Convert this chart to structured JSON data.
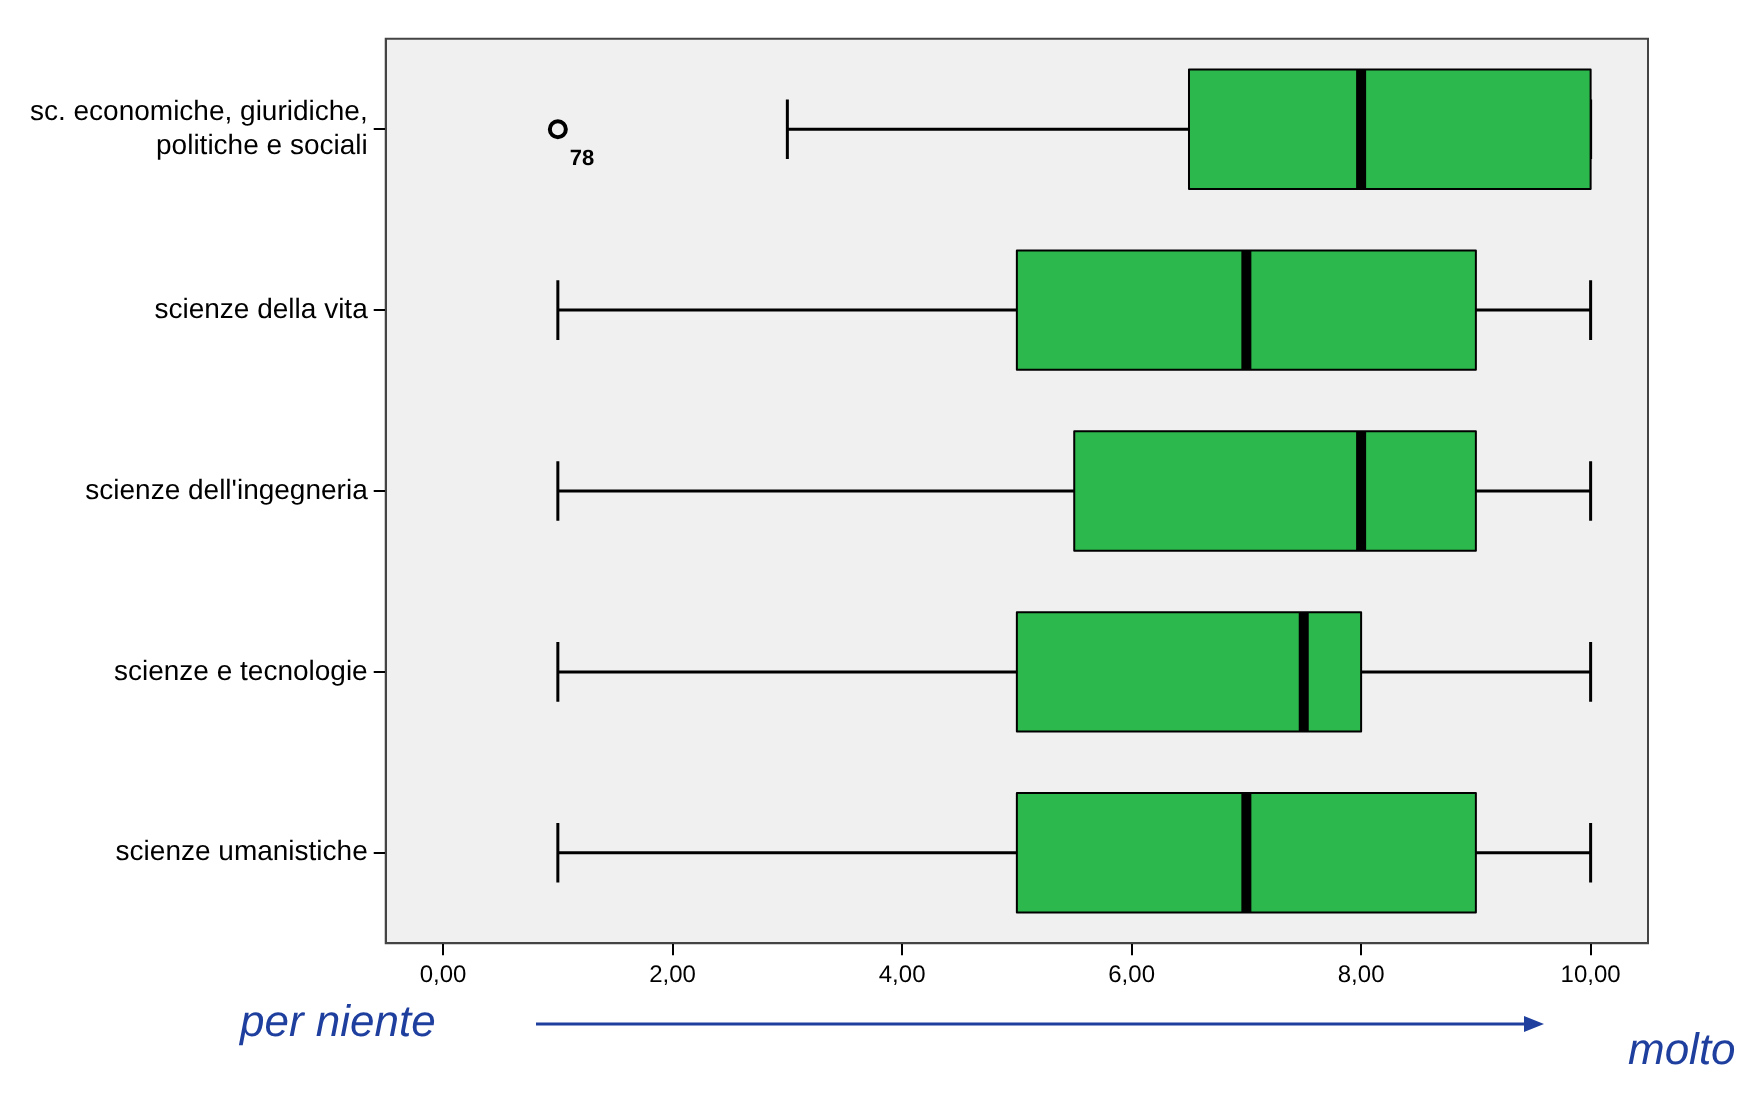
{
  "chart_data": {
    "type": "box",
    "orientation": "horizontal",
    "categories": [
      "sc. economiche, giuridiche, politiche e sociali",
      "scienze della vita",
      "scienze dell'ingegneria",
      "scienze e tecnologie",
      "scienze umanistiche"
    ],
    "boxes": [
      {
        "low": 3,
        "q1": 6.5,
        "median": 8,
        "q3": 10,
        "high": 10,
        "outliers": [
          1
        ]
      },
      {
        "low": 1,
        "q1": 5,
        "median": 7,
        "q3": 9,
        "high": 10
      },
      {
        "low": 1,
        "q1": 5.5,
        "median": 8,
        "q3": 9,
        "high": 10
      },
      {
        "low": 1,
        "q1": 5,
        "median": 7.5,
        "q3": 8,
        "high": 10
      },
      {
        "low": 1,
        "q1": 5,
        "median": 7,
        "q3": 9,
        "high": 10
      }
    ],
    "color": "#2db84d",
    "marker": "circle",
    "xlim": [
      -0.5,
      10.5
    ],
    "xticks": [
      {
        "value": 0,
        "label": "0,00"
      },
      {
        "value": 2,
        "label": "2,00"
      },
      {
        "value": 4,
        "label": "4,00"
      },
      {
        "value": 6,
        "label": "6,00"
      },
      {
        "value": 8,
        "label": "8,00"
      },
      {
        "value": 10,
        "label": "10,00"
      }
    ],
    "annotations": [
      "78",
      "per niente",
      "molto"
    ],
    "grid": false,
    "legend": false
  }
}
